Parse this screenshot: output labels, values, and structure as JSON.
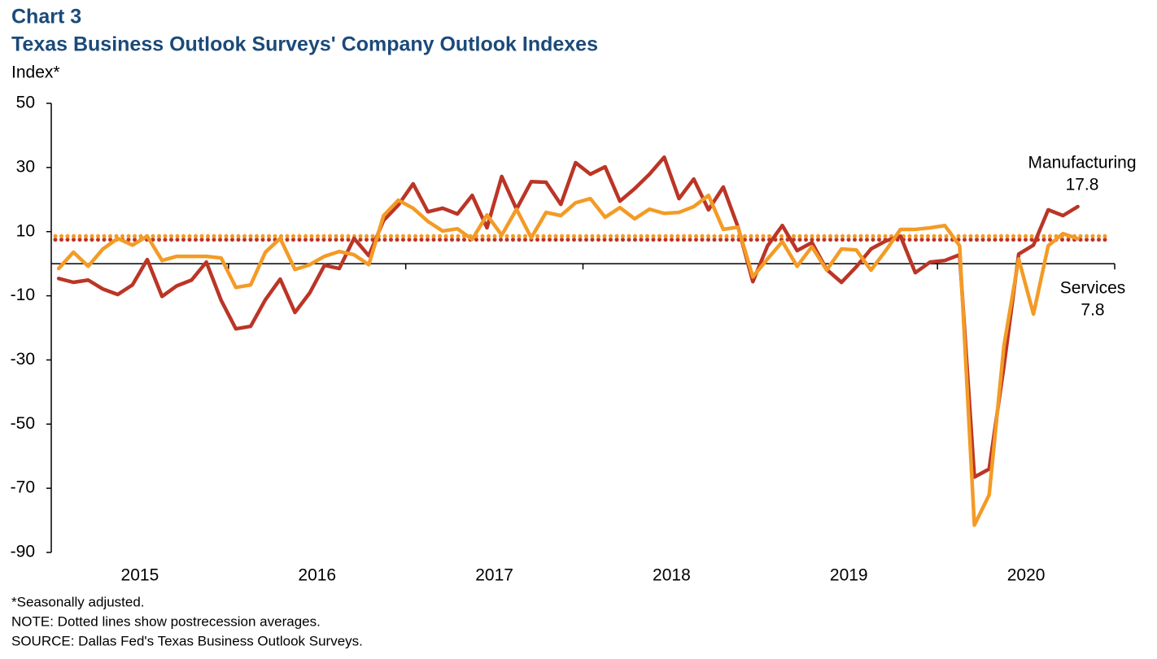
{
  "chart_data": {
    "type": "line",
    "chart_label": "Chart 3",
    "title": "Texas Business Outlook Surveys' Company Outlook Indexes",
    "y_label": "Index*",
    "notes": [
      "*Seasonally adjusted.",
      "NOTE: Dotted lines show postrecession averages.",
      "SOURCE: Dallas Fed's Texas Business Outlook Surveys."
    ],
    "categories": [
      null,
      null,
      null,
      null,
      null,
      null,
      "2015",
      null,
      null,
      null,
      null,
      null,
      null,
      null,
      null,
      null,
      null,
      null,
      "2016",
      null,
      null,
      null,
      null,
      null,
      null,
      null,
      null,
      null,
      null,
      null,
      "2017",
      null,
      null,
      null,
      null,
      null,
      null,
      null,
      null,
      null,
      null,
      null,
      "2018",
      null,
      null,
      null,
      null,
      null,
      null,
      null,
      null,
      null,
      null,
      null,
      "2019",
      null,
      null,
      null,
      null,
      null,
      null,
      null,
      null,
      null,
      null,
      null,
      "2020",
      null,
      null,
      null
    ],
    "series": [
      {
        "name": "Manufacturing",
        "color": "#bb3526",
        "average": 7.5,
        "values": [
          -4.6,
          -5.8,
          -5.1,
          -7.9,
          -9.6,
          -6.6,
          1.3,
          -10.2,
          -6.9,
          -5.1,
          0.5,
          -11.4,
          -20.3,
          -19.5,
          -11.2,
          -4.8,
          -15.2,
          -9.1,
          -0.5,
          -1.5,
          7.9,
          2.5,
          13.5,
          18.3,
          24.9,
          16.2,
          17.3,
          15.5,
          21.3,
          11.2,
          27.2,
          17.0,
          25.6,
          25.4,
          18.5,
          31.5,
          27.9,
          30.2,
          19.5,
          23.4,
          27.9,
          33.2,
          20.3,
          26.4,
          16.8,
          23.9,
          11.4,
          -5.6,
          5.6,
          11.9,
          4.1,
          6.6,
          -1.8,
          -5.8,
          -1.0,
          4.6,
          7.1,
          8.6,
          -2.8,
          0.5,
          1.0,
          2.8,
          -66.5,
          -64.0,
          -32.0,
          3.0,
          5.8,
          16.8,
          15.0,
          17.8
        ]
      },
      {
        "name": "Services",
        "color": "#f39b26",
        "average": 8.6,
        "values": [
          -1.5,
          3.6,
          -0.8,
          4.6,
          7.9,
          5.8,
          8.6,
          1.0,
          2.3,
          2.3,
          2.3,
          1.8,
          -7.4,
          -6.6,
          3.6,
          7.9,
          -1.8,
          -0.3,
          2.3,
          3.8,
          2.8,
          -0.3,
          15.0,
          19.8,
          17.3,
          13.2,
          10.2,
          10.9,
          7.6,
          15.2,
          8.9,
          17.0,
          8.1,
          16.0,
          15.0,
          19.0,
          20.3,
          14.5,
          17.5,
          14.0,
          17.0,
          15.7,
          16.0,
          17.8,
          21.3,
          10.7,
          11.4,
          -4.1,
          1.5,
          6.9,
          -0.8,
          5.3,
          -2.0,
          4.6,
          4.3,
          -2.0,
          4.1,
          10.7,
          10.7,
          11.2,
          11.9,
          5.6,
          -81.5,
          -72.1,
          -25.6,
          1.5,
          -15.7,
          5.6,
          9.4,
          7.8
        ]
      }
    ],
    "ylim": [
      -90,
      50
    ],
    "yticks": [
      -90,
      -70,
      -50,
      -30,
      -10,
      10,
      30,
      50
    ]
  }
}
